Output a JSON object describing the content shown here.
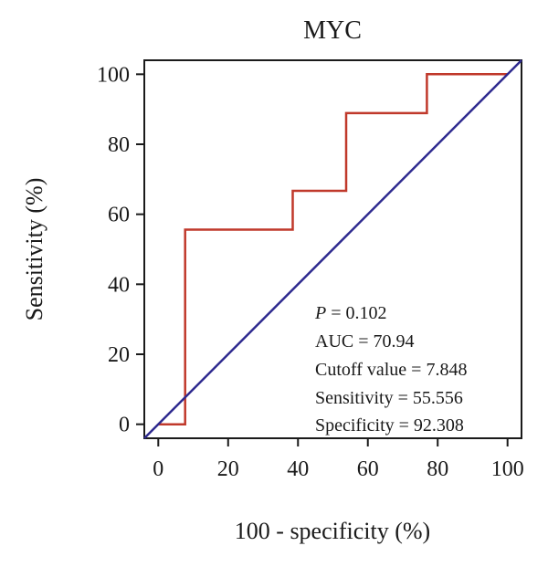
{
  "chart_data": {
    "type": "line",
    "title": "MYC",
    "xlabel": "100 - specificity (%)",
    "ylabel": "Sensitivity (%)",
    "xlim": [
      -4,
      104
    ],
    "ylim": [
      -4,
      104
    ],
    "xticks": [
      0,
      20,
      40,
      60,
      80,
      100
    ],
    "yticks": [
      0,
      20,
      40,
      60,
      80,
      100
    ],
    "grid": false,
    "legend": "none",
    "series": [
      {
        "color": "#c0392b",
        "x": [
          0,
          7.7,
          7.7,
          38.5,
          38.5,
          53.8,
          53.8,
          76.9,
          76.9,
          100
        ],
        "y": [
          0,
          0,
          55.6,
          55.6,
          66.7,
          66.7,
          88.9,
          88.9,
          100,
          100
        ]
      },
      {
        "color": "#2e2a8f",
        "x": [
          -4,
          104
        ],
        "y": [
          -4,
          104
        ]
      }
    ],
    "annotations": {
      "p_label": "P",
      "p_value": " = 0.102",
      "auc": "AUC = 70.94",
      "cutoff": "Cutoff value = 7.848",
      "sensitivity": "Sensitivity = 55.556",
      "specificity": "Specificity = 92.308"
    }
  }
}
